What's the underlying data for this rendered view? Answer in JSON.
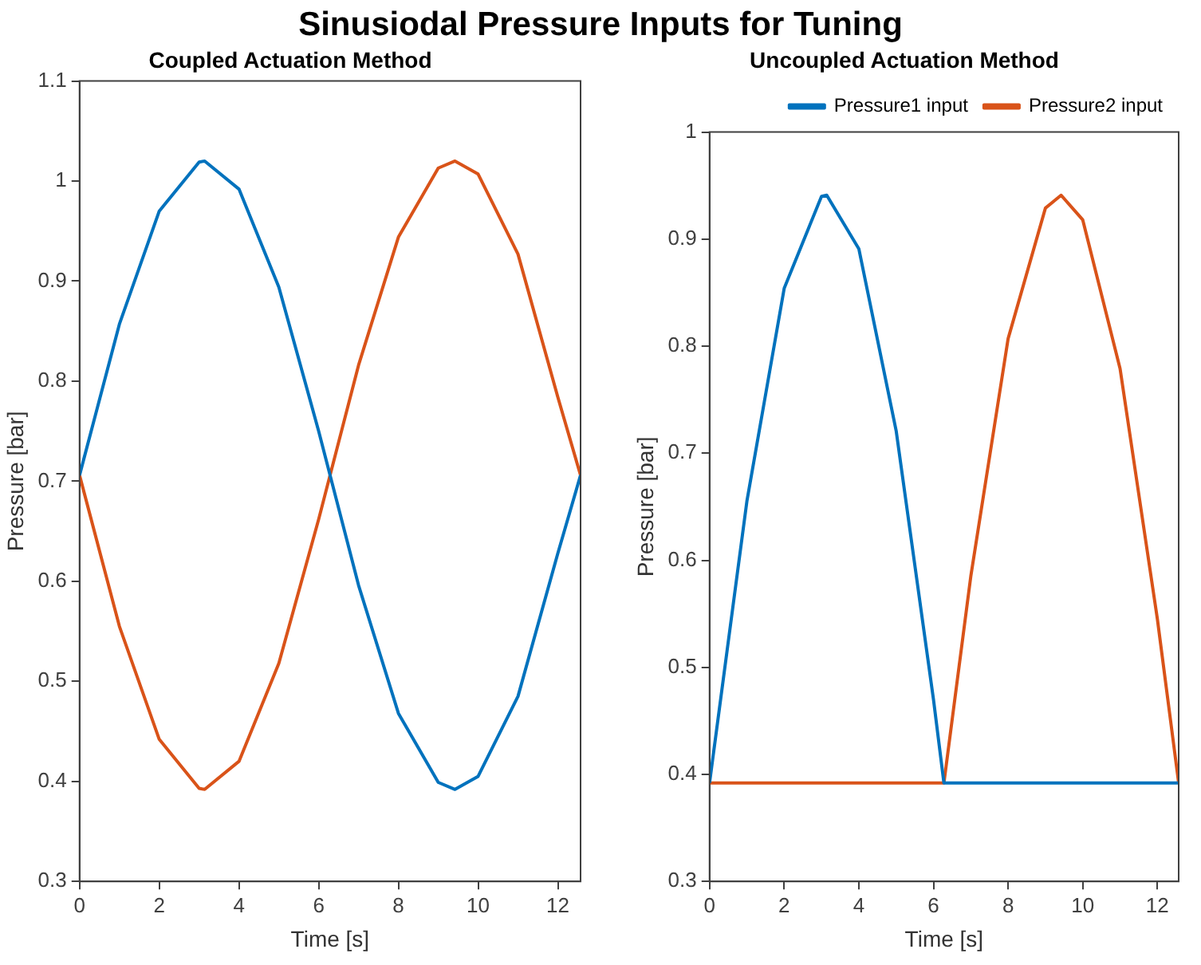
{
  "chart_data": [
    {
      "type": "line",
      "title": "Sinusiodal Pressure Inputs for Tuning",
      "subtitle": "Coupled Actuation Method",
      "xlabel": "Time [s]",
      "ylabel": "Pressure [bar]",
      "xlim": [
        0,
        12.57
      ],
      "xticks": [
        0,
        2,
        4,
        6,
        8,
        10,
        12
      ],
      "ylim": [
        0.3,
        1.1
      ],
      "yticks": [
        0.3,
        0.4,
        0.5,
        0.6,
        0.7,
        0.8,
        0.9,
        1,
        1.1
      ],
      "grid": false,
      "legend": false,
      "marker": "none",
      "line_style": "solid",
      "series": [
        {
          "color": "#0072bd",
          "x": [
            0,
            1,
            2,
            3,
            3.14,
            4,
            5,
            6,
            7,
            8,
            9,
            9.42,
            10,
            11,
            12,
            12.57
          ],
          "values": [
            0.706,
            0.857,
            0.97,
            1.019,
            1.02,
            0.992,
            0.894,
            0.75,
            0.596,
            0.468,
            0.399,
            0.392,
            0.405,
            0.485,
            0.628,
            0.706
          ]
        },
        {
          "color": "#d95319",
          "x": [
            0,
            1,
            2,
            3,
            3.14,
            4,
            5,
            6,
            7,
            8,
            9,
            9.42,
            10,
            11,
            12,
            12.57
          ],
          "values": [
            0.706,
            0.555,
            0.442,
            0.393,
            0.392,
            0.42,
            0.518,
            0.662,
            0.816,
            0.944,
            1.013,
            1.02,
            1.007,
            0.927,
            0.784,
            0.706
          ]
        }
      ]
    },
    {
      "type": "line",
      "subtitle": "Uncoupled Actuation Method",
      "xlabel": "Time [s]",
      "ylabel": "Pressure [bar]",
      "xlim": [
        0,
        12.57
      ],
      "xticks": [
        0,
        2,
        4,
        6,
        8,
        10,
        12
      ],
      "ylim": [
        0.3,
        1
      ],
      "yticks": [
        0.3,
        0.4,
        0.5,
        0.6,
        0.7,
        0.8,
        0.9,
        1
      ],
      "grid": false,
      "legend": "top right",
      "marker": "none",
      "line_style": "solid",
      "series": [
        {
          "name": "Pressure1 input",
          "color": "#0072bd",
          "x": [
            0,
            1,
            2,
            3,
            3.14,
            4,
            5,
            6,
            6.28,
            12.57
          ],
          "values": [
            0.392,
            0.655,
            0.854,
            0.94,
            0.941,
            0.891,
            0.721,
            0.47,
            0.392,
            0.392
          ]
        },
        {
          "name": "Pressure2 input",
          "color": "#d95319",
          "x": [
            0,
            6.28,
            7,
            8,
            9,
            9.42,
            10,
            11,
            12,
            12.57
          ],
          "values": [
            0.392,
            0.392,
            0.585,
            0.807,
            0.929,
            0.941,
            0.918,
            0.779,
            0.545,
            0.392
          ]
        }
      ]
    }
  ]
}
